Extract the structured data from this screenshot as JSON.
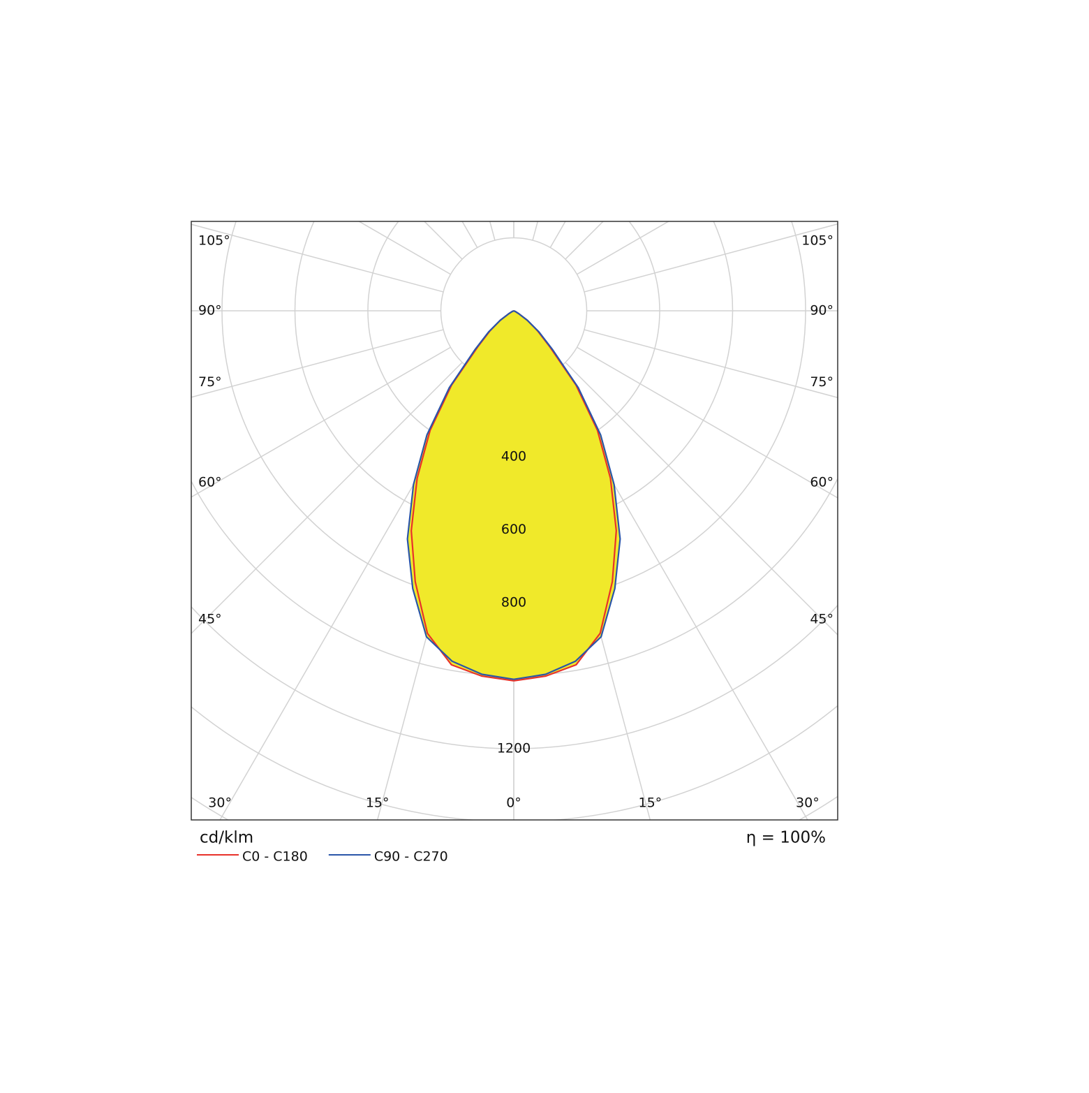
{
  "chart_data": {
    "type": "polar",
    "unit": "cd/klm",
    "efficiency": "η = 100%",
    "angles": [
      0,
      5,
      10,
      15,
      20,
      25,
      30,
      35,
      40,
      45,
      50,
      55,
      60,
      65,
      70,
      75,
      80,
      85,
      90
    ],
    "series": [
      {
        "name": "C0 - C180",
        "color": "#e8312a",
        "values": [
          1014,
          1005,
          985,
          915,
          790,
          665,
          530,
          400,
          265,
          140,
          85,
          45,
          15,
          5,
          0,
          0,
          0,
          0,
          0
        ]
      },
      {
        "name": "C90 - C270",
        "color": "#2a55a8",
        "values": [
          1010,
          1000,
          975,
          925,
          810,
          690,
          550,
          415,
          275,
          150,
          90,
          45,
          15,
          5,
          0,
          0,
          0,
          0,
          0
        ]
      }
    ],
    "fill": "#f0e92a",
    "rlim": [
      0,
      1600
    ],
    "ring_step": 200,
    "rticks": [
      400,
      600,
      800,
      1200
    ],
    "angle_step": 15,
    "angle_ticks": [
      {
        "value": 0,
        "label": "0°"
      },
      {
        "value": 15,
        "label": "15°"
      },
      {
        "value": 30,
        "label": "30°"
      },
      {
        "value": 45,
        "label": "45°"
      },
      {
        "value": 60,
        "label": "60°"
      },
      {
        "value": 75,
        "label": "75°"
      },
      {
        "value": 90,
        "label": "90°"
      },
      {
        "value": 105,
        "label": "105°"
      }
    ],
    "grid": true
  }
}
